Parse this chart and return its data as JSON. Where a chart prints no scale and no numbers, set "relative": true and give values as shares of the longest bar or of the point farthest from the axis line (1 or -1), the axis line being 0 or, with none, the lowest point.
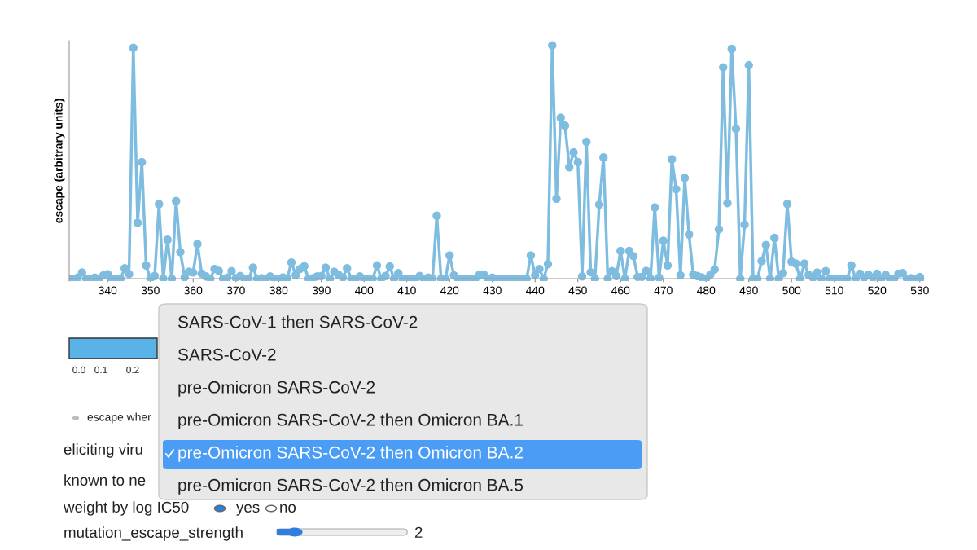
{
  "chart_data": {
    "type": "line",
    "relative": true,
    "ylabel": "escape (arbitrary units)",
    "x": [
      331,
      332,
      333,
      334,
      335,
      336,
      337,
      338,
      339,
      340,
      341,
      342,
      343,
      344,
      345,
      346,
      347,
      348,
      349,
      350,
      351,
      352,
      353,
      354,
      355,
      356,
      357,
      358,
      359,
      360,
      361,
      362,
      363,
      364,
      365,
      366,
      367,
      368,
      369,
      370,
      371,
      372,
      373,
      374,
      375,
      376,
      377,
      378,
      379,
      380,
      381,
      382,
      383,
      384,
      385,
      386,
      387,
      388,
      389,
      390,
      391,
      392,
      393,
      394,
      395,
      396,
      397,
      398,
      399,
      400,
      401,
      402,
      403,
      404,
      405,
      406,
      407,
      408,
      409,
      410,
      411,
      412,
      413,
      414,
      415,
      416,
      417,
      418,
      419,
      420,
      421,
      422,
      423,
      424,
      425,
      426,
      427,
      428,
      429,
      430,
      431,
      432,
      433,
      434,
      435,
      436,
      437,
      438,
      439,
      440,
      441,
      442,
      443,
      444,
      445,
      446,
      447,
      448,
      449,
      450,
      451,
      452,
      453,
      454,
      455,
      456,
      457,
      458,
      459,
      460,
      461,
      462,
      463,
      464,
      465,
      466,
      467,
      468,
      469,
      470,
      471,
      472,
      473,
      474,
      475,
      476,
      477,
      478,
      479,
      480,
      481,
      482,
      483,
      484,
      485,
      486,
      487,
      488,
      489,
      490,
      491,
      492,
      493,
      494,
      495,
      496,
      497,
      498,
      499,
      500,
      501,
      502,
      503,
      504,
      505,
      506,
      507,
      508,
      509,
      510,
      511,
      512,
      513,
      514,
      515,
      516,
      517,
      518,
      519,
      520,
      521,
      522,
      523,
      524,
      525,
      526,
      527,
      528,
      529,
      530,
      531
    ],
    "series": [
      {
        "color": "#7fbde0",
        "values": [
          0,
          0,
          0.005,
          0.027,
          0,
          0,
          0.005,
          0,
          0.015,
          0.02,
          0,
          0,
          0,
          0.045,
          0.02,
          0.99,
          0.24,
          0.5,
          0.057,
          0,
          0.012,
          0.32,
          0,
          0.167,
          0,
          0.333,
          0.115,
          0.006,
          0.03,
          0.027,
          0.149,
          0.022,
          0.01,
          0,
          0.042,
          0.034,
          0,
          0.005,
          0.033,
          0.002,
          0.012,
          0,
          0,
          0.048,
          0,
          0.002,
          0,
          0.01,
          0,
          0,
          0.006,
          0.002,
          0.07,
          0.016,
          0.042,
          0.054,
          0,
          0.002,
          0.01,
          0.012,
          0.048,
          0,
          0.03,
          0.017,
          0.005,
          0.045,
          0,
          0,
          0.01,
          0,
          0,
          0,
          0.057,
          0,
          0.012,
          0.053,
          0,
          0.024,
          0,
          0,
          0,
          0,
          0.012,
          0,
          0.005,
          0,
          0.27,
          0,
          0,
          0.1,
          0.015,
          0,
          0,
          0,
          0,
          0,
          0.018,
          0.018,
          0,
          0.005,
          0,
          0,
          0,
          0,
          0,
          0,
          0,
          0,
          0.1,
          0.015,
          0.042,
          0,
          0.063,
          1.0,
          0.343,
          0.69,
          0.656,
          0.478,
          0.542,
          0.5,
          0.01,
          0.587,
          0.028,
          0,
          0.318,
          0.52,
          0,
          0.033,
          0.012,
          0.119,
          0,
          0.119,
          0.097,
          0.008,
          0.008,
          0.034,
          0,
          0.306,
          0.005,
          0.163,
          0.057,
          0.512,
          0.384,
          0.015,
          0.432,
          0.19,
          0.018,
          0.012,
          0.006,
          0,
          0.018,
          0.04,
          0.212,
          0.906,
          0.324,
          0.985,
          0.642,
          0,
          0.232,
          0.915,
          0,
          0,
          0.076,
          0.145,
          0,
          0.175,
          0,
          0.024,
          0.321,
          0.073,
          0.065,
          0,
          0.065,
          0.017,
          0.005,
          0.027,
          0,
          0.033,
          0,
          0,
          0,
          0,
          0,
          0.057,
          0,
          0.022,
          0.005,
          0.017,
          0.005,
          0.022,
          0,
          0.017,
          0,
          0,
          0.022,
          0.024,
          0,
          0.002,
          0,
          0.008,
          0
        ]
      }
    ],
    "xlim": [
      331,
      531
    ],
    "xticks": [
      340,
      350,
      360,
      370,
      380,
      390,
      400,
      410,
      420,
      430,
      440,
      450,
      460,
      470,
      480,
      490,
      500,
      510,
      520,
      530
    ],
    "marker": "circle",
    "line_style": "solid",
    "grid": false,
    "legend": false,
    "annotations": [
      "0.0",
      "0.1",
      "0.2",
      "escape wher",
      "eliciting viru",
      "known to ne",
      "weight by log IC50",
      "yes",
      "no",
      "mutation_escape_strength",
      "2",
      "SARS-CoV-1 then SARS-CoV-2",
      "SARS-CoV-2",
      "pre-Omicron SARS-CoV-2",
      "pre-Omicron SARS-CoV-2 then Omicron BA.1",
      "pre-Omicron SARS-CoV-2 then Omicron BA.2",
      "pre-Omicron SARS-CoV-2 then Omicron BA.5"
    ]
  }
}
